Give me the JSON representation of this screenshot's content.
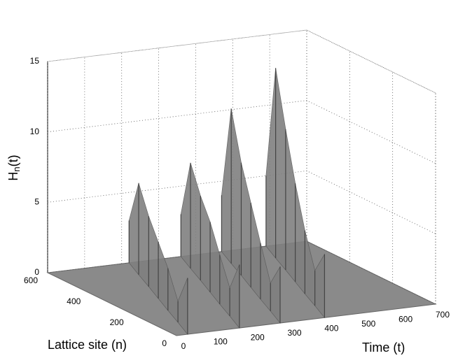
{
  "chart_data": {
    "type": "surface3d",
    "xlabel": "Time (t)",
    "ylabel": "Lattice site (n)",
    "zlabel": {
      "base": "H",
      "sub": "n",
      "rest": "(t)"
    },
    "xlim": [
      0,
      700
    ],
    "xticks": [
      0,
      100,
      200,
      300,
      400,
      500,
      600,
      700
    ],
    "ylim": [
      0,
      600
    ],
    "yticks": [
      0,
      200,
      400,
      600
    ],
    "zlim": [
      0,
      15
    ],
    "zticks": [
      0,
      5,
      10,
      15
    ],
    "grid": true,
    "color": "#808080",
    "n": [
      600,
      500,
      400,
      300,
      200,
      100,
      0
    ],
    "ridges": [
      {
        "t": [
          220,
          188,
          157,
          125,
          93,
          62,
          30
        ],
        "values": [
          3,
          6.5,
          5,
          4,
          3,
          1.5,
          4
        ]
      },
      {
        "t": [
          360,
          328,
          297,
          265,
          233,
          202,
          170
        ],
        "values": [
          3,
          7.5,
          6,
          5,
          3.5,
          2,
          4.5
        ]
      },
      {
        "t": [
          470,
          438,
          407,
          375,
          343,
          312,
          280
        ],
        "values": [
          4,
          11,
          8,
          6,
          4,
          2,
          4
        ]
      },
      {
        "t": [
          590,
          558,
          527,
          495,
          463,
          432,
          400
        ],
        "values": [
          5,
          13.5,
          10,
          7,
          4.5,
          2.5,
          4.5
        ]
      }
    ]
  }
}
